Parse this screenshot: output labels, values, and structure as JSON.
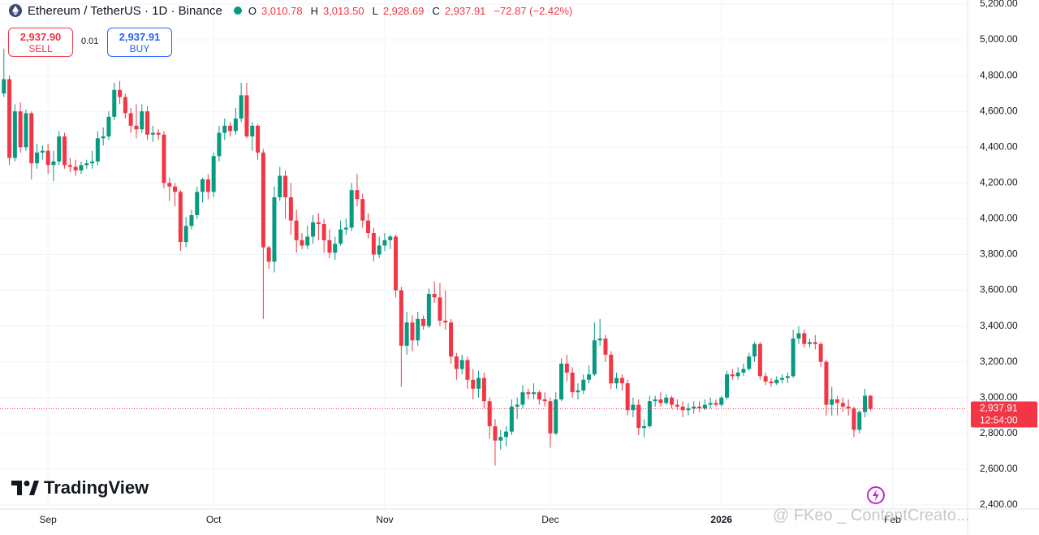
{
  "chart_data": {
    "type": "candlestick",
    "title": "Ethereum / TetherUS · 1D · Binance",
    "ohlc_legend": [
      "O",
      "3,010.78",
      "H",
      "3,013.50",
      "L",
      "2,928.69",
      "C",
      "2,937.91",
      "−72.87 (−2.42%)"
    ],
    "sell": {
      "price": "2,937.90",
      "label": "SELL"
    },
    "spread": "0.01",
    "buy": {
      "price": "2,937.91",
      "label": "BUY"
    },
    "last_price": {
      "value": 2937.91,
      "label": "2,937.91",
      "countdown": "12:54:00"
    },
    "brand": "TradingView",
    "watermark": "@ FKeo _ ContentCreato...",
    "up_color": "#089981",
    "down_color": "#f23645",
    "open": [
      4700,
      4780,
      4340,
      4600,
      4400,
      4590,
      4310,
      4370,
      4380,
      4300,
      4320,
      4460,
      4300,
      4290,
      4270,
      4300,
      4310,
      4320,
      4450,
      4460,
      4570,
      4720,
      4680,
      4590,
      4520,
      4500,
      4600,
      4470,
      4480,
      4470,
      4200,
      4180,
      4150,
      3870,
      3960,
      4020,
      4150,
      4220,
      4150,
      4350,
      4480,
      4520,
      4490,
      4560,
      4690,
      4460,
      4520,
      4370,
      3840,
      3760,
      4120,
      4240,
      4120,
      3990,
      3880,
      3850,
      3900,
      3980,
      3970,
      3880,
      3810,
      3860,
      3940,
      3950,
      4160,
      4110,
      3990,
      3920,
      3800,
      3850,
      3880,
      3900,
      3600,
      3290,
      3420,
      3320,
      3440,
      3400,
      3580,
      3560,
      3430,
      3420,
      3230,
      3160,
      3210,
      3100,
      3050,
      3110,
      2980,
      2840,
      2760,
      2780,
      2810,
      2950,
      2960,
      3030,
      3020,
      3030,
      2990,
      2980,
      2800,
      2990,
      3190,
      3140,
      3030,
      3040,
      3100,
      3130,
      3320,
      3330,
      3240,
      3080,
      3110,
      3080,
      2930,
      2960,
      2830,
      2840,
      2980,
      2990,
      2970,
      3000,
      2960,
      2950,
      2930,
      2940,
      2950,
      2940,
      2960,
      2970,
      2960,
      3000,
      3130,
      3120,
      3140,
      3160,
      3230,
      3300,
      3120,
      3090,
      3080,
      3100,
      3110,
      3120,
      3330,
      3360,
      3300,
      3310,
      3300,
      3200,
      2960,
      2990,
      2970,
      2950,
      2940,
      2820,
      2920,
      3010.78
    ],
    "high": [
      4950,
      4800,
      4640,
      4650,
      4610,
      4600,
      4420,
      4410,
      4420,
      4380,
      4490,
      4480,
      4340,
      4330,
      4320,
      4330,
      4380,
      4490,
      4510,
      4600,
      4760,
      4770,
      4700,
      4620,
      4640,
      4640,
      4630,
      4520,
      4500,
      4490,
      4230,
      4200,
      4160,
      4010,
      4050,
      4180,
      4230,
      4250,
      4370,
      4520,
      4560,
      4540,
      4620,
      4760,
      4760,
      4540,
      4530,
      4390,
      3850,
      4180,
      4290,
      4270,
      4200,
      4050,
      3920,
      3960,
      4020,
      4030,
      4000,
      3940,
      3900,
      3990,
      4000,
      4200,
      4250,
      4140,
      4030,
      3950,
      3900,
      3920,
      3910,
      3910,
      3620,
      3480,
      3460,
      3480,
      3460,
      3610,
      3650,
      3640,
      3600,
      3440,
      3250,
      3240,
      3230,
      3160,
      3150,
      3140,
      3000,
      2880,
      2820,
      2840,
      2990,
      3000,
      3070,
      3050,
      3080,
      3040,
      3030,
      3000,
      3030,
      3220,
      3240,
      3170,
      3080,
      3130,
      3180,
      3420,
      3440,
      3350,
      3260,
      3140,
      3130,
      3100,
      3000,
      2990,
      2880,
      3010,
      3010,
      3030,
      3020,
      3010,
      2990,
      2980,
      2970,
      2980,
      2980,
      2990,
      3000,
      2990,
      3010,
      3150,
      3160,
      3170,
      3190,
      3250,
      3310,
      3310,
      3140,
      3110,
      3120,
      3130,
      3140,
      3380,
      3400,
      3380,
      3330,
      3350,
      3310,
      3210,
      3060,
      3010,
      3000,
      2990,
      2950,
      2930,
      3050,
      3013.5
    ],
    "low": [
      4680,
      4300,
      4320,
      4370,
      4380,
      4220,
      4280,
      4330,
      4250,
      4210,
      4300,
      4280,
      4260,
      4240,
      4250,
      4280,
      4280,
      4300,
      4410,
      4440,
      4550,
      4640,
      4560,
      4480,
      4450,
      4480,
      4440,
      4430,
      4440,
      4170,
      4100,
      4070,
      3820,
      3840,
      3940,
      4000,
      4090,
      4110,
      4120,
      4320,
      4440,
      4460,
      4470,
      4540,
      4450,
      4380,
      4330,
      3440,
      3720,
      3700,
      4100,
      4000,
      3910,
      3810,
      3830,
      3830,
      3860,
      3880,
      3810,
      3780,
      3770,
      3850,
      3910,
      3930,
      4070,
      3950,
      3890,
      3760,
      3780,
      3820,
      3830,
      3560,
      3060,
      3240,
      3260,
      3290,
      3380,
      3390,
      3530,
      3400,
      3380,
      3190,
      3100,
      3130,
      3050,
      2990,
      3000,
      2940,
      2770,
      2620,
      2710,
      2730,
      2790,
      2880,
      2940,
      2990,
      2990,
      2960,
      2950,
      2720,
      2790,
      2980,
      3090,
      3000,
      2990,
      3020,
      3080,
      3120,
      3290,
      3200,
      3050,
      3050,
      3040,
      2900,
      2890,
      2790,
      2780,
      2830,
      2950,
      2950,
      2960,
      2940,
      2930,
      2890,
      2900,
      2910,
      2920,
      2930,
      2940,
      2950,
      2950,
      2990,
      3100,
      3100,
      3120,
      3150,
      3200,
      3100,
      3070,
      3060,
      3070,
      3080,
      3080,
      3110,
      3300,
      3280,
      3280,
      3270,
      3170,
      2900,
      2900,
      2900,
      2920,
      2900,
      2780,
      2800,
      2890,
      2928.69
    ],
    "close": [
      4780,
      4340,
      4600,
      4400,
      4590,
      4310,
      4370,
      4380,
      4300,
      4320,
      4460,
      4300,
      4290,
      4270,
      4300,
      4310,
      4320,
      4450,
      4460,
      4570,
      4720,
      4680,
      4590,
      4520,
      4500,
      4600,
      4470,
      4480,
      4470,
      4200,
      4180,
      4150,
      3870,
      3960,
      4020,
      4150,
      4220,
      4150,
      4350,
      4480,
      4520,
      4490,
      4560,
      4690,
      4460,
      4520,
      4370,
      3840,
      3760,
      4120,
      4240,
      4120,
      3990,
      3880,
      3850,
      3900,
      3980,
      3970,
      3880,
      3810,
      3860,
      3940,
      3950,
      4160,
      4110,
      3990,
      3920,
      3800,
      3850,
      3880,
      3900,
      3600,
      3290,
      3420,
      3320,
      3440,
      3400,
      3580,
      3560,
      3430,
      3420,
      3230,
      3160,
      3210,
      3100,
      3050,
      3110,
      2980,
      2840,
      2760,
      2780,
      2810,
      2950,
      2960,
      3030,
      3020,
      3030,
      2990,
      2980,
      2800,
      2990,
      3190,
      3140,
      3030,
      3040,
      3100,
      3130,
      3320,
      3330,
      3240,
      3080,
      3110,
      3080,
      2930,
      2960,
      2830,
      2840,
      2980,
      2990,
      2970,
      3000,
      2960,
      2950,
      2930,
      2940,
      2950,
      2940,
      2960,
      2970,
      2960,
      3000,
      3130,
      3120,
      3140,
      3160,
      3230,
      3300,
      3120,
      3090,
      3080,
      3100,
      3110,
      3120,
      3330,
      3360,
      3300,
      3310,
      3300,
      3200,
      2960,
      2990,
      2970,
      2950,
      2940,
      2820,
      2920,
      3010.78,
      2937.91
    ],
    "xlim": [
      -0.7,
      174.3
    ],
    "xticks": [
      {
        "value": 8,
        "label": "Sep"
      },
      {
        "value": 38,
        "label": "Oct"
      },
      {
        "value": 69,
        "label": "Nov"
      },
      {
        "value": 99,
        "label": "Dec"
      },
      {
        "value": 130,
        "label": "2026"
      },
      {
        "value": 161,
        "label": "Feb"
      }
    ],
    "ylim": [
      2400,
      5200
    ],
    "yticks": [
      {
        "value": 2400,
        "label": "2,400.00"
      },
      {
        "value": 2600,
        "label": "2,600.00"
      },
      {
        "value": 2800,
        "label": "2,800.00"
      },
      {
        "value": 3000,
        "label": "3,000.00"
      },
      {
        "value": 3200,
        "label": "3,200.00"
      },
      {
        "value": 3400,
        "label": "3,400.00"
      },
      {
        "value": 3600,
        "label": "3,600.00"
      },
      {
        "value": 3800,
        "label": "3,800.00"
      },
      {
        "value": 4000,
        "label": "4,000.00"
      },
      {
        "value": 4200,
        "label": "4,200.00"
      },
      {
        "value": 4400,
        "label": "4,400.00"
      },
      {
        "value": 4600,
        "label": "4,600.00"
      },
      {
        "value": 4800,
        "label": "4,800.00"
      },
      {
        "value": 5000,
        "label": "5,000.00"
      },
      {
        "value": 5200,
        "label": "5,200.00"
      }
    ],
    "grid": true
  }
}
